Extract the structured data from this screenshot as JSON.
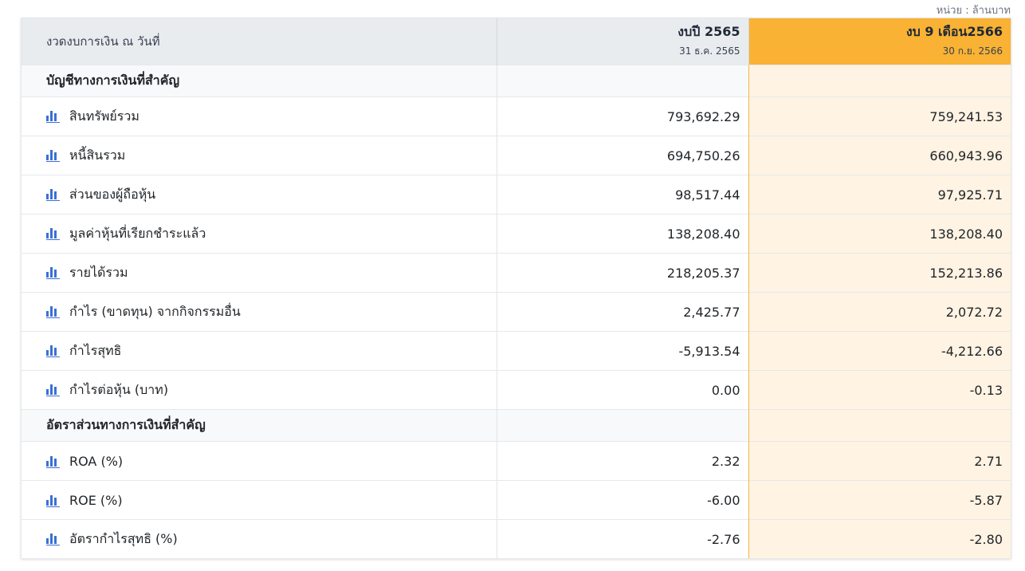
{
  "unit_label": "หน่วย : ล้านบาท",
  "header": {
    "label": "งวดงบการเงิน ณ วันที่",
    "col1": {
      "title": "งบปี 2565",
      "date": "31 ธ.ค. 2565"
    },
    "col2": {
      "title": "งบ 9 เดือน2566",
      "date": "30 ก.ย. 2566"
    }
  },
  "sections": [
    {
      "title": "บัญชีทางการเงินที่สำคัญ",
      "rows": [
        {
          "label": "สินทรัพย์รวม",
          "v1": "793,692.29",
          "v2": "759,241.53"
        },
        {
          "label": "หนี้สินรวม",
          "v1": "694,750.26",
          "v2": "660,943.96"
        },
        {
          "label": "ส่วนของผู้ถือหุ้น",
          "v1": "98,517.44",
          "v2": "97,925.71"
        },
        {
          "label": "มูลค่าหุ้นที่เรียกชำระแล้ว",
          "v1": "138,208.40",
          "v2": "138,208.40"
        },
        {
          "label": "รายได้รวม",
          "v1": "218,205.37",
          "v2": "152,213.86"
        },
        {
          "label": "กำไร (ขาดทุน) จากกิจกรรมอื่น",
          "v1": "2,425.77",
          "v2": "2,072.72"
        },
        {
          "label": "กำไรสุทธิ",
          "v1": "-5,913.54",
          "v2": "-4,212.66"
        },
        {
          "label": "กำไรต่อหุ้น (บาท)",
          "v1": "0.00",
          "v2": "-0.13"
        }
      ]
    },
    {
      "title": "อัตราส่วนทางการเงินที่สำคัญ",
      "rows": [
        {
          "label": "ROA (%)",
          "v1": "2.32",
          "v2": "2.71"
        },
        {
          "label": "ROE (%)",
          "v1": "-6.00",
          "v2": "-5.87"
        },
        {
          "label": "อัตรากำไรสุทธิ (%)",
          "v1": "-2.76",
          "v2": "-2.80"
        }
      ]
    }
  ],
  "icons": {
    "row_icon": "bar-chart-icon"
  },
  "colors": {
    "highlight": "#f9b233",
    "highlight_bg": "#fff3e3",
    "icon": "#3b6fd6"
  }
}
